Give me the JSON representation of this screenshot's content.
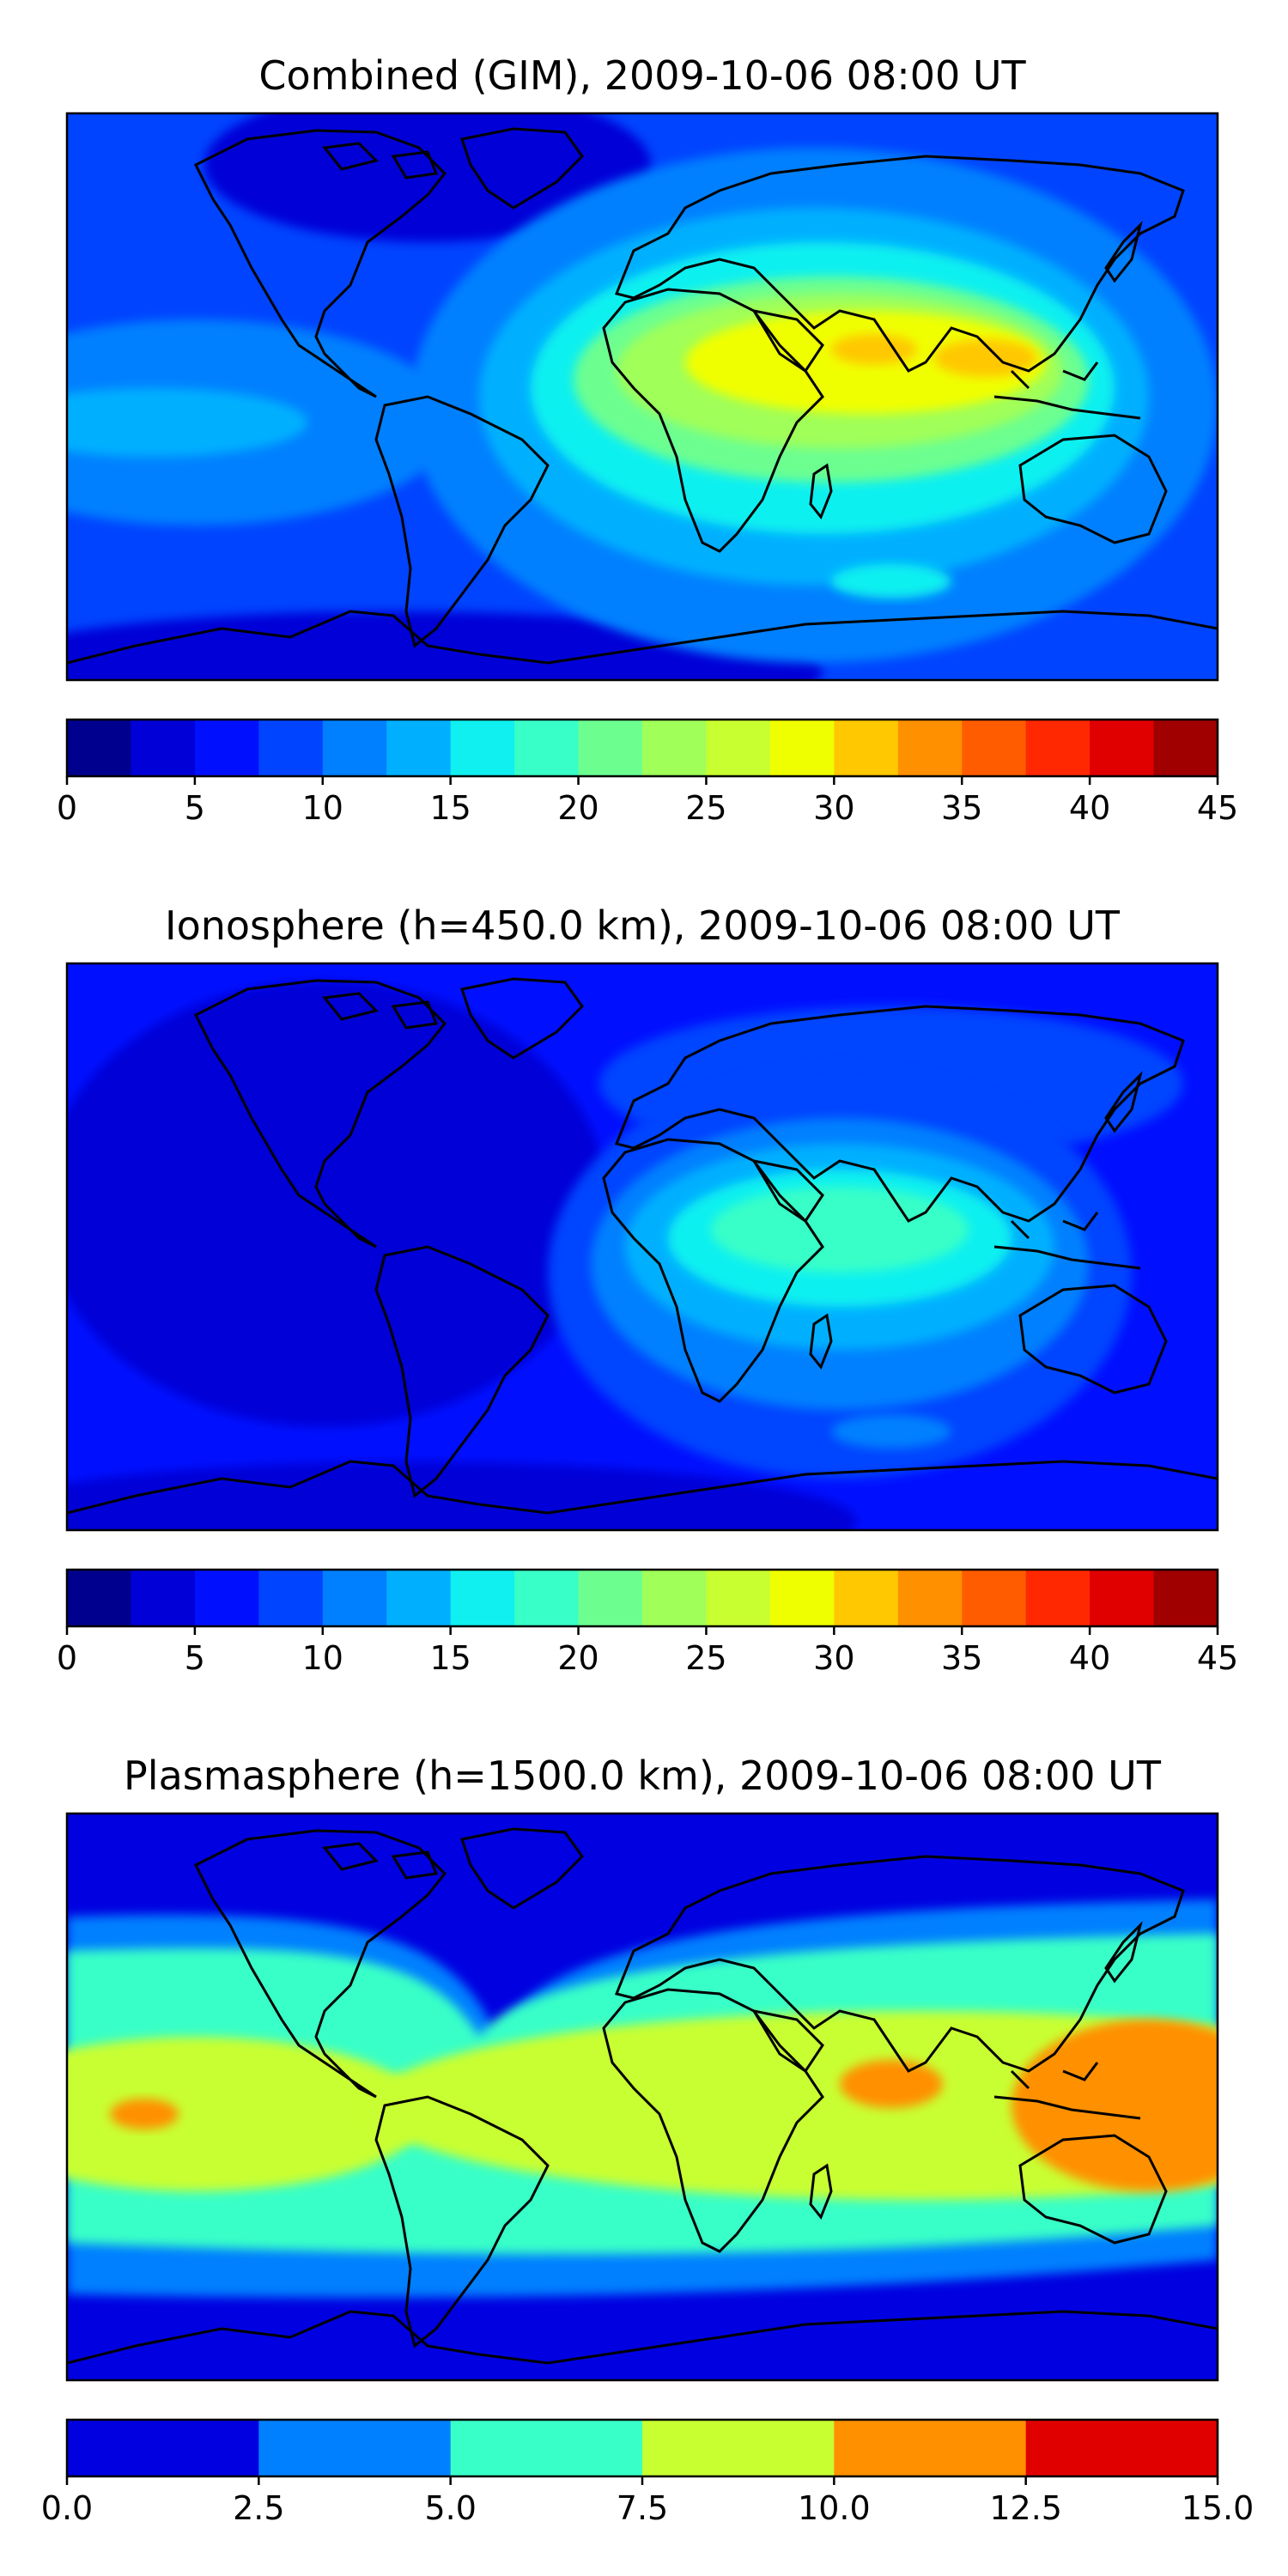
{
  "chart_data": [
    {
      "type": "heatmap",
      "title": "Combined (GIM), 2009-10-06 08:00 UT",
      "colorbar": {
        "levels": [
          0,
          2.5,
          5,
          7.5,
          10,
          12.5,
          15,
          17.5,
          20,
          22.5,
          25,
          27.5,
          30,
          32.5,
          35,
          37.5,
          40,
          42.5,
          45
        ],
        "colors": [
          "#00008f",
          "#0000d7",
          "#0010ff",
          "#0044ff",
          "#0080ff",
          "#00b0ff",
          "#10f0f0",
          "#38ffc8",
          "#6cff90",
          "#a0ff58",
          "#c8ff30",
          "#f0ff00",
          "#ffc800",
          "#ff9000",
          "#ff5c00",
          "#ff2800",
          "#e00000",
          "#a00000"
        ],
        "tick_labels": [
          "0",
          "5",
          "10",
          "15",
          "20",
          "25",
          "30",
          "35",
          "40",
          "45"
        ]
      },
      "zones": [
        {
          "name": "background",
          "value": 8
        },
        {
          "name": "north-america-polar-cap",
          "value": 4
        },
        {
          "name": "southern-ocean-low",
          "value": 4
        },
        {
          "name": "pacific-equatorial-band",
          "value": 11
        },
        {
          "name": "pacific-equatorial-core",
          "value": 14
        },
        {
          "name": "dayside-outer",
          "value": 11
        },
        {
          "name": "dayside-ring-1",
          "value": 14
        },
        {
          "name": "dayside-ring-2",
          "value": 17
        },
        {
          "name": "dayside-ring-3",
          "value": 20
        },
        {
          "name": "dayside-ring-4",
          "value": 24
        },
        {
          "name": "dayside-peak",
          "value": 29
        },
        {
          "name": "india-maximum",
          "value": 31
        },
        {
          "name": "southeast-asia-maximum",
          "value": 31
        },
        {
          "name": "south-indian-ocean-patch",
          "value": 15
        }
      ]
    },
    {
      "type": "heatmap",
      "title": "Ionosphere  (h=450.0 km), 2009-10-06 08:00 UT",
      "colorbar": {
        "levels": [
          0,
          2.5,
          5,
          7.5,
          10,
          12.5,
          15,
          17.5,
          20,
          22.5,
          25,
          27.5,
          30,
          32.5,
          35,
          37.5,
          40,
          42.5,
          45
        ],
        "colors": [
          "#00008f",
          "#0000d7",
          "#0010ff",
          "#0044ff",
          "#0080ff",
          "#00b0ff",
          "#10f0f0",
          "#38ffc8",
          "#6cff90",
          "#a0ff58",
          "#c8ff30",
          "#f0ff00",
          "#ffc800",
          "#ff9000",
          "#ff5c00",
          "#ff2800",
          "#e00000",
          "#a00000"
        ],
        "tick_labels": [
          "0",
          "5",
          "10",
          "15",
          "20",
          "25",
          "30",
          "35",
          "40",
          "45"
        ]
      },
      "zones": [
        {
          "name": "background",
          "value": 6
        },
        {
          "name": "americas-nightside-low",
          "value": 3
        },
        {
          "name": "southern-ocean-low",
          "value": 3
        },
        {
          "name": "eurasia-band",
          "value": 8
        },
        {
          "name": "dayside-outer",
          "value": 8
        },
        {
          "name": "dayside-ring-1",
          "value": 11
        },
        {
          "name": "dayside-ring-2",
          "value": 14
        },
        {
          "name": "dayside-ring-3",
          "value": 16
        },
        {
          "name": "dayside-peak",
          "value": 19
        },
        {
          "name": "south-indian-ocean-patch",
          "value": 12
        }
      ]
    },
    {
      "type": "heatmap",
      "title": "Plasmasphere (h=1500.0 km), 2009-10-06 08:00 UT",
      "colorbar": {
        "levels": [
          0,
          2.5,
          5,
          7.5,
          10,
          12.5,
          15
        ],
        "colors": [
          "#0000e0",
          "#0080ff",
          "#38ffc8",
          "#c8ff30",
          "#ff9000",
          "#e00000"
        ],
        "tick_labels": [
          "0.0",
          "2.5",
          "5.0",
          "7.5",
          "10.0",
          "12.5",
          "15.0"
        ]
      },
      "zones": [
        {
          "name": "polar-low",
          "value": 1.5
        },
        {
          "name": "mid-latitude-band",
          "value": 4
        },
        {
          "name": "low-latitude-band",
          "value": 6
        },
        {
          "name": "pacific-equatorial-high",
          "value": 8.5
        },
        {
          "name": "eastern-hemisphere-high",
          "value": 8.5
        },
        {
          "name": "pacific-maximum",
          "value": 11
        },
        {
          "name": "arabian-sea-maximum",
          "value": 11
        },
        {
          "name": "west-pacific-maximum",
          "value": 11
        }
      ]
    }
  ]
}
